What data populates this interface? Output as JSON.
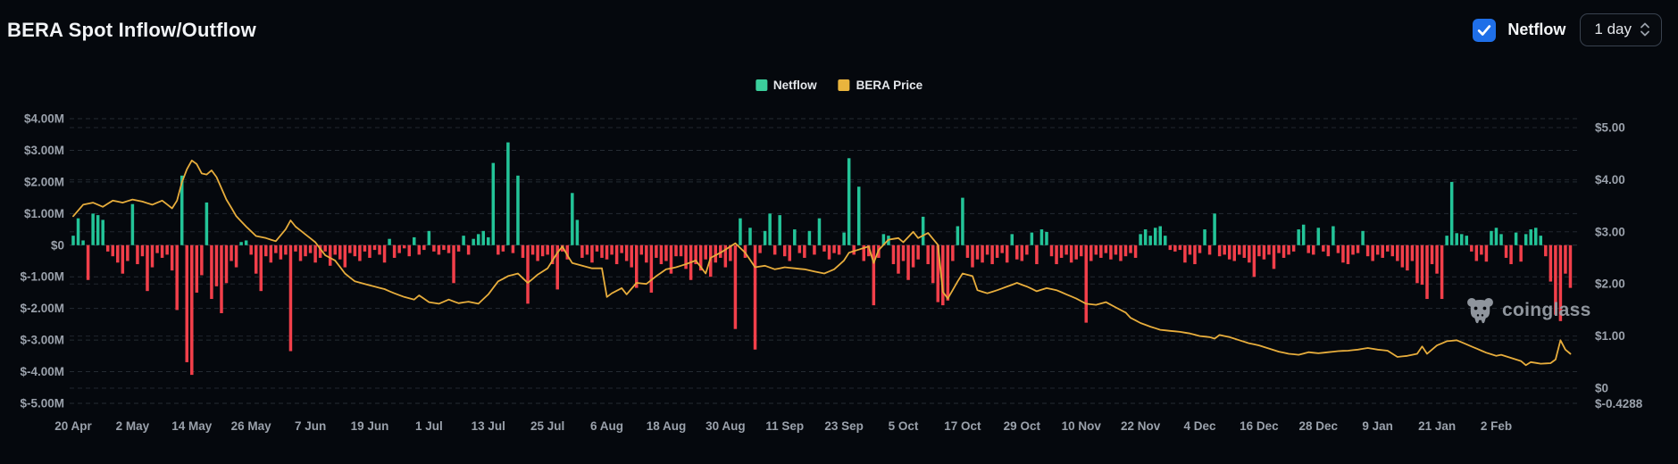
{
  "header": {
    "title": "BERA Spot Inflow/Outflow",
    "netflow_toggle": {
      "label": "Netflow",
      "checked": true,
      "color": "#1f6fe8"
    },
    "interval_dropdown": {
      "value": "1 day"
    }
  },
  "legend": {
    "items": [
      {
        "label": "Netflow",
        "color": "#3bcf9c"
      },
      {
        "label": "BERA Price",
        "color": "#e9b43d"
      }
    ]
  },
  "watermark": {
    "text": "coinglass"
  },
  "chart_data": {
    "type": "bar+line",
    "title": "BERA Spot Inflow/Outflow",
    "grid": true,
    "legend_position": "top-center",
    "x_tick_interval_days": 12,
    "x_tick_labels": [
      "20 Apr",
      "2 May",
      "14 May",
      "26 May",
      "7 Jun",
      "19 Jun",
      "1 Jul",
      "13 Jul",
      "25 Jul",
      "6 Aug",
      "18 Aug",
      "30 Aug",
      "11 Sep",
      "23 Sep",
      "5 Oct",
      "17 Oct",
      "29 Oct",
      "10 Nov",
      "22 Nov",
      "4 Dec",
      "16 Dec",
      "28 Dec",
      "9 Jan",
      "21 Jan",
      "2 Feb"
    ],
    "left_axis": {
      "unit": "USD millions",
      "tick_labels": [
        "$4.00M",
        "$3.00M",
        "$2.00M",
        "$1.00M",
        "$0",
        "$-1.00M",
        "$-2.00M",
        "$-3.00M",
        "$-4.00M",
        "$-5.00M"
      ],
      "range_millions": [
        -5,
        4
      ]
    },
    "right_axis": {
      "unit": "USD",
      "tick_labels": [
        "$5.00",
        "$4.00",
        "$3.00",
        "$2.00",
        "$1.00",
        "$0"
      ],
      "bottom_label": "$-0.4288",
      "range": [
        -0.4288,
        5
      ]
    },
    "series": [
      {
        "name": "Netflow",
        "type": "bar",
        "unit": "USD millions",
        "positive_color": "#23c498",
        "negative_color": "#f23f4a",
        "values": [
          0.3,
          0.85,
          0.15,
          -1.1,
          1.0,
          0.95,
          0.8,
          -0.2,
          -0.35,
          -0.55,
          -0.9,
          -0.5,
          1.3,
          -0.6,
          -0.35,
          -1.45,
          -0.7,
          -0.25,
          -0.4,
          -0.3,
          -0.8,
          -2.05,
          2.2,
          -3.7,
          -4.1,
          -1.5,
          -0.95,
          1.35,
          -1.7,
          -1.3,
          -2.15,
          -1.2,
          -0.5,
          -0.7,
          0.1,
          0.15,
          -0.3,
          -0.9,
          -1.45,
          -0.35,
          -0.55,
          -0.25,
          -0.45,
          -0.3,
          -3.35,
          -0.2,
          -0.5,
          -0.35,
          -0.25,
          -0.55,
          -0.4,
          -0.2,
          -0.65,
          -0.3,
          -0.45,
          -0.7,
          -0.25,
          -0.35,
          -0.5,
          -0.2,
          -0.4,
          -0.15,
          -0.3,
          -0.55,
          0.2,
          -0.4,
          -0.25,
          -0.1,
          -0.35,
          0.25,
          -0.3,
          -0.15,
          0.45,
          -0.2,
          -0.3,
          -0.15,
          -0.25,
          -1.2,
          -0.2,
          0.3,
          -0.3,
          0.2,
          0.35,
          0.45,
          0.25,
          2.6,
          -0.3,
          -0.2,
          3.25,
          -0.25,
          2.2,
          -0.4,
          -1.85,
          -0.3,
          -0.5,
          -0.35,
          -0.3,
          -0.6,
          -1.4,
          -0.2,
          -0.45,
          1.65,
          0.8,
          -0.4,
          -0.3,
          -0.55,
          -0.2,
          -0.4,
          -0.45,
          -0.3,
          -0.6,
          -0.25,
          -0.5,
          -0.7,
          -1.35,
          -0.3,
          -0.55,
          -1.5,
          -0.4,
          -0.6,
          -0.5,
          -0.9,
          -0.35,
          -0.35,
          -0.75,
          -1.1,
          -0.6,
          -0.8,
          -0.45,
          -1.0,
          -0.55,
          -0.4,
          -0.7,
          -0.5,
          -2.65,
          0.85,
          -0.4,
          0.55,
          -3.3,
          -0.25,
          0.45,
          1.0,
          -0.3,
          0.95,
          -0.35,
          -0.5,
          0.5,
          -0.25,
          -0.4,
          0.45,
          -0.3,
          0.85,
          -0.2,
          -0.45,
          -0.25,
          -0.3,
          0.4,
          2.75,
          -0.3,
          1.85,
          -0.5,
          -0.35,
          -1.9,
          -0.4,
          0.35,
          0.3,
          -0.6,
          -0.9,
          -0.5,
          -1.1,
          -0.7,
          -0.45,
          0.9,
          -0.6,
          -1.2,
          -1.8,
          -1.9,
          -1.75,
          -0.5,
          0.6,
          1.5,
          -0.4,
          -0.7,
          -0.45,
          -0.55,
          -0.3,
          -0.6,
          -0.4,
          -0.25,
          -0.55,
          0.35,
          -0.45,
          -0.5,
          -0.3,
          0.4,
          -0.6,
          0.5,
          0.42,
          -0.35,
          -0.6,
          -0.4,
          -0.3,
          -0.55,
          -0.45,
          -0.35,
          -2.45,
          -0.5,
          -0.3,
          -0.4,
          -0.25,
          -0.45,
          -0.3,
          -0.5,
          -0.35,
          -0.25,
          -0.4,
          0.35,
          0.5,
          0.3,
          0.55,
          0.6,
          0.3,
          -0.15,
          -0.2,
          -0.15,
          -0.55,
          -0.3,
          -0.6,
          -0.25,
          0.5,
          -0.3,
          1.0,
          -0.35,
          -0.3,
          -0.45,
          -0.5,
          -0.3,
          -0.4,
          -0.55,
          -1.0,
          -0.35,
          -0.45,
          -0.3,
          -0.75,
          -0.25,
          -0.4,
          -0.3,
          -0.2,
          0.5,
          0.65,
          -0.25,
          -0.3,
          0.55,
          -0.2,
          -0.35,
          0.6,
          -0.25,
          -0.55,
          -0.6,
          -0.3,
          -0.25,
          0.45,
          -0.35,
          -0.5,
          -0.3,
          -0.4,
          -0.2,
          -0.35,
          -0.5,
          -0.7,
          -0.8,
          -0.5,
          -1.2,
          -1.25,
          -1.7,
          -0.6,
          -0.9,
          -1.7,
          0.3,
          2.0,
          0.38,
          0.35,
          0.3,
          -0.2,
          -0.5,
          -0.3,
          -0.52,
          0.45,
          0.55,
          0.35,
          -0.4,
          -0.6,
          0.4,
          -0.52,
          0.35,
          0.5,
          0.55,
          0.3,
          -0.35,
          -1.15,
          -2.2,
          -2.4,
          -0.9,
          -1.35
        ]
      },
      {
        "name": "BERA Price",
        "type": "line",
        "unit": "USD",
        "color": "#e7ad3c",
        "anchors_day_price": [
          [
            0,
            3.3
          ],
          [
            2,
            3.52
          ],
          [
            4,
            3.56
          ],
          [
            6,
            3.48
          ],
          [
            8,
            3.6
          ],
          [
            10,
            3.56
          ],
          [
            12,
            3.62
          ],
          [
            14,
            3.58
          ],
          [
            16,
            3.52
          ],
          [
            18,
            3.6
          ],
          [
            20,
            3.45
          ],
          [
            21,
            3.6
          ],
          [
            22,
            3.95
          ],
          [
            23,
            4.2
          ],
          [
            24,
            4.37
          ],
          [
            25,
            4.3
          ],
          [
            26,
            4.12
          ],
          [
            27,
            4.1
          ],
          [
            28,
            4.18
          ],
          [
            29,
            4.05
          ],
          [
            31,
            3.62
          ],
          [
            33,
            3.3
          ],
          [
            35,
            3.1
          ],
          [
            37,
            2.92
          ],
          [
            39,
            2.88
          ],
          [
            41,
            2.82
          ],
          [
            43,
            3.05
          ],
          [
            44,
            3.22
          ],
          [
            45,
            3.1
          ],
          [
            47,
            2.95
          ],
          [
            49,
            2.8
          ],
          [
            51,
            2.55
          ],
          [
            53,
            2.45
          ],
          [
            55,
            2.2
          ],
          [
            57,
            2.05
          ],
          [
            59,
            2.0
          ],
          [
            61,
            1.95
          ],
          [
            63,
            1.9
          ],
          [
            65,
            1.82
          ],
          [
            67,
            1.75
          ],
          [
            69,
            1.7
          ],
          [
            70,
            1.78
          ],
          [
            72,
            1.65
          ],
          [
            74,
            1.62
          ],
          [
            76,
            1.7
          ],
          [
            78,
            1.63
          ],
          [
            80,
            1.66
          ],
          [
            82,
            1.62
          ],
          [
            84,
            1.8
          ],
          [
            86,
            2.05
          ],
          [
            88,
            2.15
          ],
          [
            90,
            2.2
          ],
          [
            92,
            2.02
          ],
          [
            94,
            2.18
          ],
          [
            96,
            2.3
          ],
          [
            98,
            2.6
          ],
          [
            99,
            2.72
          ],
          [
            100,
            2.55
          ],
          [
            101,
            2.4
          ],
          [
            103,
            2.35
          ],
          [
            105,
            2.3
          ],
          [
            107,
            2.3
          ],
          [
            108,
            1.75
          ],
          [
            109,
            1.82
          ],
          [
            111,
            1.92
          ],
          [
            112,
            1.8
          ],
          [
            114,
            2.02
          ],
          [
            116,
            2.0
          ],
          [
            118,
            2.15
          ],
          [
            120,
            2.28
          ],
          [
            122,
            2.32
          ],
          [
            124,
            2.38
          ],
          [
            126,
            2.45
          ],
          [
            128,
            2.2
          ],
          [
            129,
            2.5
          ],
          [
            131,
            2.6
          ],
          [
            133,
            2.72
          ],
          [
            134,
            2.78
          ],
          [
            136,
            2.6
          ],
          [
            138,
            2.32
          ],
          [
            140,
            2.35
          ],
          [
            142,
            2.28
          ],
          [
            144,
            2.32
          ],
          [
            146,
            2.3
          ],
          [
            148,
            2.28
          ],
          [
            150,
            2.24
          ],
          [
            152,
            2.2
          ],
          [
            154,
            2.28
          ],
          [
            156,
            2.45
          ],
          [
            157,
            2.6
          ],
          [
            159,
            2.66
          ],
          [
            161,
            2.72
          ],
          [
            162,
            2.4
          ],
          [
            163,
            2.65
          ],
          [
            165,
            2.85
          ],
          [
            167,
            2.88
          ],
          [
            168,
            2.8
          ],
          [
            170,
            3.0
          ],
          [
            171,
            2.88
          ],
          [
            173,
            2.98
          ],
          [
            175,
            2.75
          ],
          [
            176,
            1.85
          ],
          [
            177,
            1.72
          ],
          [
            179,
            2.05
          ],
          [
            180,
            2.2
          ],
          [
            182,
            2.15
          ],
          [
            183,
            1.88
          ],
          [
            185,
            1.82
          ],
          [
            187,
            1.88
          ],
          [
            189,
            1.95
          ],
          [
            191,
            2.02
          ],
          [
            193,
            1.95
          ],
          [
            195,
            1.86
          ],
          [
            197,
            1.92
          ],
          [
            199,
            1.88
          ],
          [
            201,
            1.8
          ],
          [
            203,
            1.72
          ],
          [
            205,
            1.62
          ],
          [
            207,
            1.6
          ],
          [
            209,
            1.65
          ],
          [
            211,
            1.55
          ],
          [
            213,
            1.45
          ],
          [
            214,
            1.35
          ],
          [
            216,
            1.25
          ],
          [
            218,
            1.18
          ],
          [
            220,
            1.12
          ],
          [
            222,
            1.1
          ],
          [
            224,
            1.08
          ],
          [
            226,
            1.05
          ],
          [
            228,
            1.0
          ],
          [
            230,
            0.98
          ],
          [
            231,
            0.95
          ],
          [
            232,
            1.02
          ],
          [
            234,
            0.98
          ],
          [
            236,
            0.92
          ],
          [
            238,
            0.86
          ],
          [
            240,
            0.82
          ],
          [
            242,
            0.76
          ],
          [
            244,
            0.7
          ],
          [
            246,
            0.66
          ],
          [
            248,
            0.64
          ],
          [
            250,
            0.69
          ],
          [
            252,
            0.67
          ],
          [
            254,
            0.69
          ],
          [
            256,
            0.71
          ],
          [
            258,
            0.72
          ],
          [
            260,
            0.74
          ],
          [
            262,
            0.77
          ],
          [
            264,
            0.74
          ],
          [
            266,
            0.72
          ],
          [
            268,
            0.6
          ],
          [
            270,
            0.62
          ],
          [
            272,
            0.66
          ],
          [
            273,
            0.8
          ],
          [
            274,
            0.66
          ],
          [
            276,
            0.82
          ],
          [
            278,
            0.9
          ],
          [
            280,
            0.92
          ],
          [
            282,
            0.84
          ],
          [
            284,
            0.76
          ],
          [
            286,
            0.68
          ],
          [
            288,
            0.62
          ],
          [
            289,
            0.64
          ],
          [
            291,
            0.58
          ],
          [
            293,
            0.52
          ],
          [
            294,
            0.44
          ],
          [
            295,
            0.5
          ],
          [
            297,
            0.47
          ],
          [
            299,
            0.48
          ],
          [
            300,
            0.55
          ],
          [
            301,
            0.92
          ],
          [
            302,
            0.74
          ],
          [
            303,
            0.66
          ]
        ]
      }
    ]
  }
}
